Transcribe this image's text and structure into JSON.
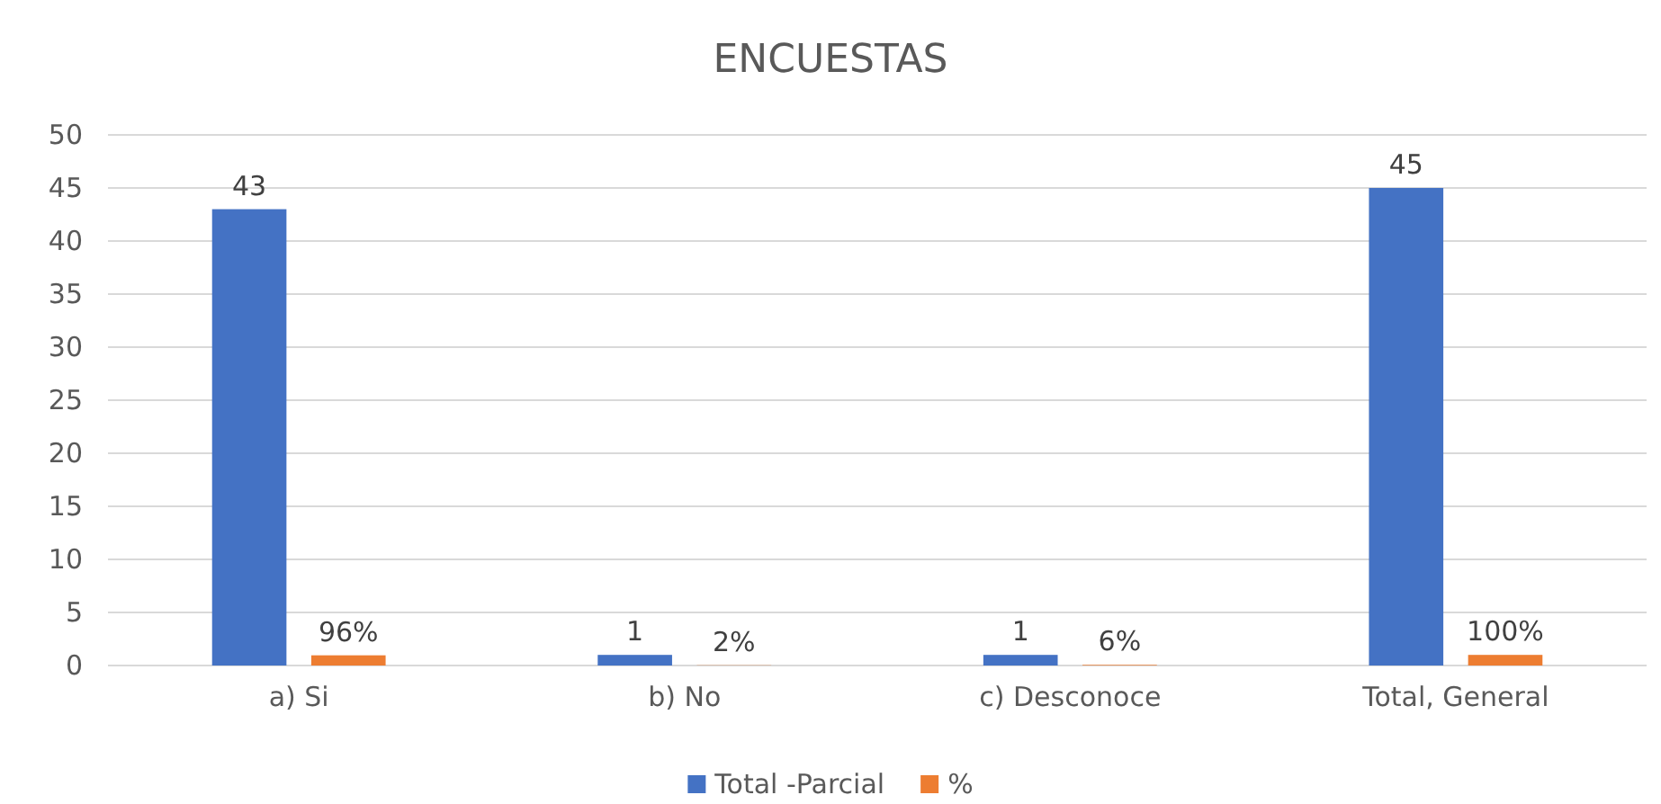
{
  "chart_data": {
    "type": "bar",
    "title": "ENCUESTAS",
    "categories": [
      "a) Si",
      "b) No",
      "c) Desconoce",
      "Total, General"
    ],
    "series": [
      {
        "name": "Total -Parcial",
        "color": "#4472c4",
        "values": [
          43,
          1,
          1,
          45
        ],
        "value_labels": [
          "43",
          "1",
          "1",
          "45"
        ]
      },
      {
        "name": "%",
        "color": "#ed7d31",
        "values": [
          0.96,
          0.02,
          0.06,
          1
        ],
        "value_labels": [
          "96%",
          "2%",
          "6%",
          "100%"
        ]
      }
    ],
    "ylim": [
      0,
      50
    ],
    "yticks": [
      0,
      5,
      10,
      15,
      20,
      25,
      30,
      35,
      40,
      45,
      50
    ],
    "grid": "y",
    "legend": "bottom"
  }
}
